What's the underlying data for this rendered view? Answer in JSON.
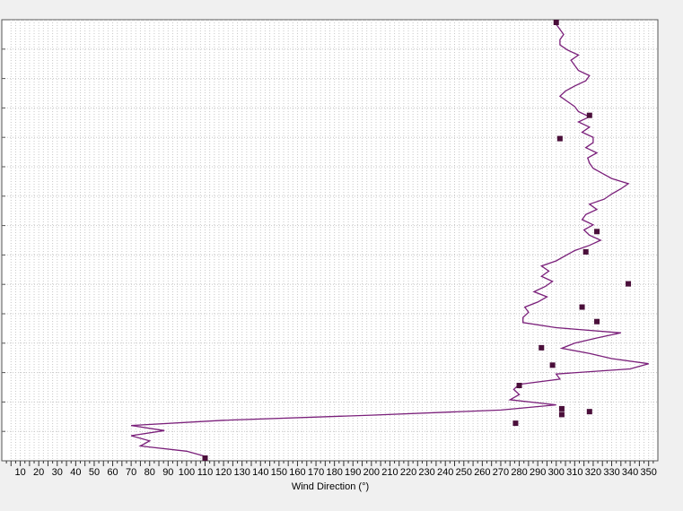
{
  "chart_data": {
    "type": "line",
    "title": "",
    "xlabel": "Wind Direction (°)",
    "ylabel": "",
    "xlim": [
      0,
      355
    ],
    "x_ticks": [
      10,
      20,
      30,
      40,
      50,
      60,
      70,
      80,
      90,
      100,
      110,
      120,
      130,
      140,
      150,
      160,
      170,
      180,
      190,
      200,
      210,
      220,
      230,
      240,
      250,
      260,
      270,
      280,
      290,
      300,
      310,
      320,
      330,
      340,
      350
    ],
    "grid": true,
    "series": [
      {
        "color": "#7a1f7a",
        "marker_color": "#4a0f3a",
        "points": [
          [
            110,
            0
          ],
          [
            100,
            1
          ],
          [
            75,
            2
          ],
          [
            80,
            3
          ],
          [
            70,
            4
          ],
          [
            88,
            5
          ],
          [
            70,
            6
          ],
          [
            120,
            7
          ],
          [
            200,
            8
          ],
          [
            270,
            9
          ],
          [
            300,
            10
          ],
          [
            275,
            11
          ],
          [
            280,
            12
          ],
          [
            277,
            13
          ],
          [
            280,
            14
          ],
          [
            302,
            15
          ],
          [
            300,
            16
          ],
          [
            340,
            17
          ],
          [
            350,
            18
          ],
          [
            330,
            19
          ],
          [
            318,
            20
          ],
          [
            303,
            21
          ],
          [
            310,
            22
          ],
          [
            322,
            23
          ],
          [
            335,
            24
          ],
          [
            300,
            25
          ],
          [
            282,
            26
          ],
          [
            282,
            27
          ],
          [
            285,
            28
          ],
          [
            283,
            29
          ],
          [
            290,
            30
          ],
          [
            295,
            31
          ],
          [
            288,
            32
          ],
          [
            294,
            33
          ],
          [
            298,
            34
          ],
          [
            292,
            35
          ],
          [
            296,
            36
          ],
          [
            292,
            37
          ],
          [
            300,
            38
          ],
          [
            305,
            39
          ],
          [
            310,
            40
          ],
          [
            318,
            41
          ],
          [
            324,
            42
          ],
          [
            318,
            43
          ],
          [
            315,
            44
          ],
          [
            320,
            45
          ],
          [
            314,
            46
          ],
          [
            316,
            47
          ],
          [
            322,
            48
          ],
          [
            318,
            49
          ],
          [
            326,
            50
          ],
          [
            330,
            51
          ],
          [
            335,
            52
          ],
          [
            339,
            53
          ],
          [
            330,
            54
          ],
          [
            325,
            55
          ],
          [
            320,
            56
          ],
          [
            318,
            57
          ],
          [
            317,
            58
          ],
          [
            322,
            59
          ],
          [
            316,
            60
          ],
          [
            320,
            61
          ],
          [
            320,
            62
          ],
          [
            314,
            63
          ],
          [
            318,
            64
          ],
          [
            312,
            65
          ],
          [
            318,
            66
          ],
          [
            312,
            67
          ],
          [
            310,
            68
          ],
          [
            306,
            69
          ],
          [
            302,
            70
          ],
          [
            305,
            71
          ],
          [
            310,
            72
          ],
          [
            316,
            73
          ],
          [
            318,
            74
          ],
          [
            312,
            75
          ],
          [
            310,
            76
          ],
          [
            308,
            77
          ],
          [
            312,
            78
          ],
          [
            306,
            79
          ],
          [
            302,
            80
          ],
          [
            302,
            81
          ],
          [
            304,
            82
          ],
          [
            302,
            83
          ],
          [
            300,
            84
          ]
        ],
        "markers": [
          [
            110,
            0
          ],
          [
            278,
            12
          ],
          [
            303,
            15
          ],
          [
            318,
            16
          ],
          [
            303,
            17
          ],
          [
            280,
            25
          ],
          [
            298,
            32
          ],
          [
            292,
            38
          ],
          [
            322,
            47
          ],
          [
            314,
            52
          ],
          [
            339,
            60
          ],
          [
            316,
            71
          ],
          [
            322,
            78
          ],
          [
            302,
            110
          ],
          [
            318,
            118
          ],
          [
            300,
            150
          ]
        ]
      }
    ]
  }
}
